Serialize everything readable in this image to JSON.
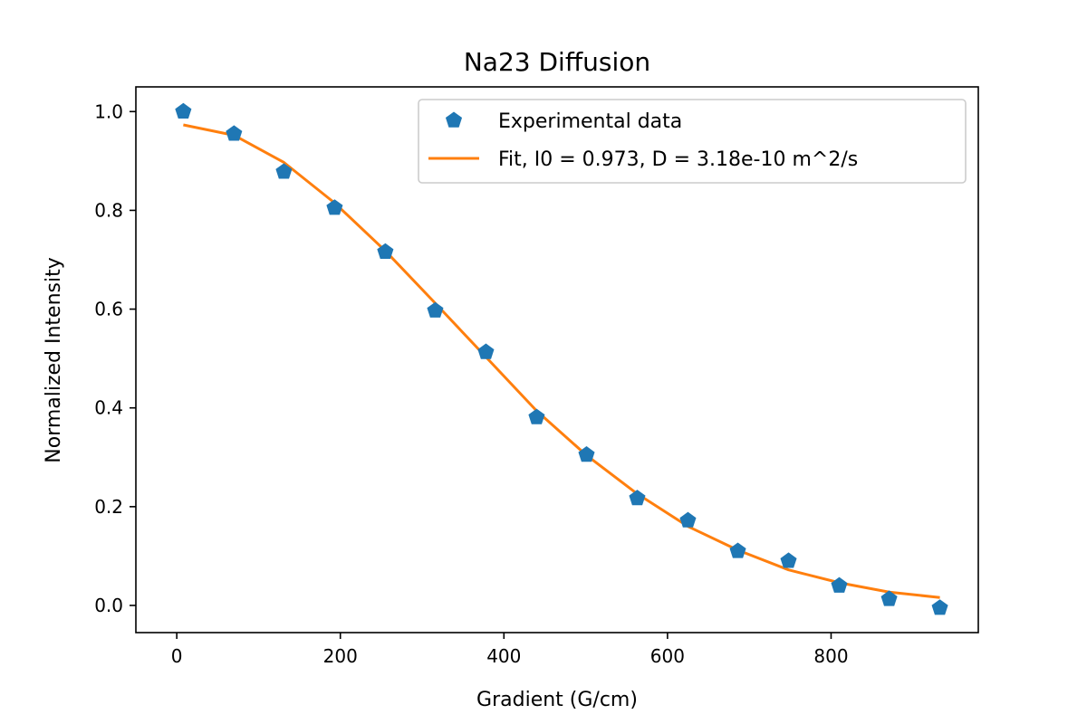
{
  "chart_data": {
    "type": "scatter",
    "title": "Na23 Diffusion",
    "xlabel": "Gradient (G/cm)",
    "ylabel": "Normalized Intensity",
    "xlim": [
      -50,
      980
    ],
    "ylim": [
      -0.055,
      1.05
    ],
    "xticks": [
      0,
      200,
      400,
      600,
      800
    ],
    "yticks": [
      0.0,
      0.2,
      0.4,
      0.6,
      0.8,
      1.0
    ],
    "xtick_labels": [
      "0",
      "200",
      "400",
      "600",
      "800"
    ],
    "ytick_labels": [
      "0.0",
      "0.2",
      "0.4",
      "0.6",
      "0.8",
      "1.0"
    ],
    "legend_position": "top-right",
    "series": [
      {
        "name": "Experimental data",
        "kind": "scatter",
        "marker": "pentagon",
        "color": "#1f77b4",
        "x": [
          8,
          70,
          131,
          193,
          255,
          316,
          378,
          440,
          501,
          563,
          625,
          686,
          748,
          810,
          871,
          933
        ],
        "y": [
          1.0,
          0.955,
          0.878,
          0.805,
          0.716,
          0.597,
          0.513,
          0.381,
          0.305,
          0.217,
          0.172,
          0.11,
          0.09,
          0.04,
          0.013,
          -0.005
        ]
      },
      {
        "name": "Fit, I0 = 0.973, D = 3.18e-10 m^2/s",
        "kind": "line",
        "color": "#ff7f0e",
        "x": [
          8,
          70,
          131,
          193,
          255,
          316,
          378,
          440,
          501,
          563,
          625,
          686,
          748,
          810,
          871,
          933
        ],
        "y": [
          0.973,
          0.952,
          0.897,
          0.815,
          0.718,
          0.612,
          0.503,
          0.394,
          0.304,
          0.226,
          0.16,
          0.112,
          0.072,
          0.046,
          0.027,
          0.016
        ]
      }
    ]
  }
}
